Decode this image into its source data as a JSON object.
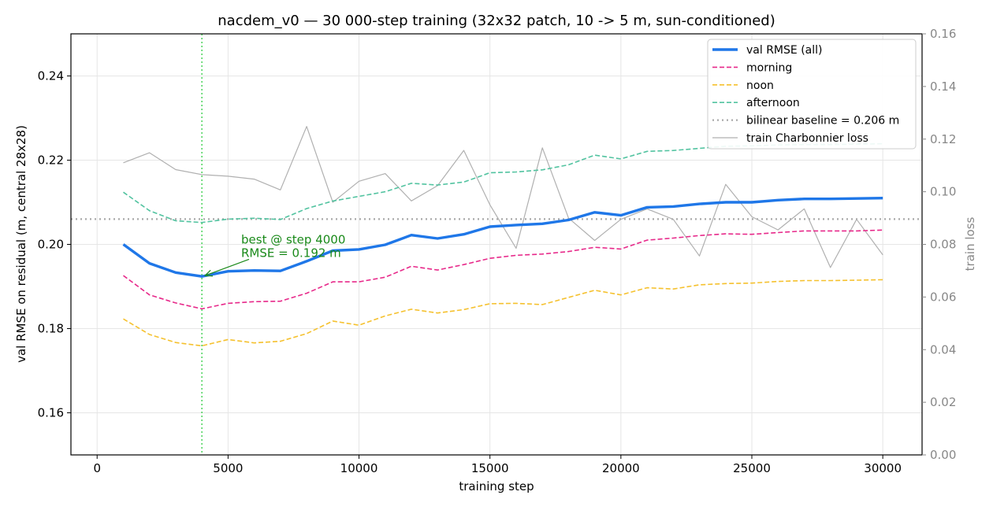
{
  "chart_data": {
    "type": "line",
    "title": "nacdem_v0 — 30 000-step training (32x32 patch, 10 -> 5 m, sun-conditioned)",
    "xlabel": "training step",
    "ylabel": "val RMSE on residual (m, central 28x28)",
    "ylabel_right": "train loss",
    "xlim": [
      -1000,
      31500
    ],
    "ylim": [
      0.15,
      0.25
    ],
    "ylim_right": [
      0.0,
      0.16
    ],
    "xticks": [
      0,
      5000,
      10000,
      15000,
      20000,
      25000,
      30000
    ],
    "yticks": [
      0.16,
      0.18,
      0.2,
      0.22,
      0.24
    ],
    "yticks_right": [
      0.0,
      0.02,
      0.04,
      0.06,
      0.08,
      0.1,
      0.12,
      0.14,
      0.16
    ],
    "grid": true,
    "legend_position": "top-right",
    "x": [
      1000,
      2000,
      3000,
      4000,
      5000,
      6000,
      7000,
      8000,
      9000,
      10000,
      11000,
      12000,
      13000,
      14000,
      15000,
      16000,
      17000,
      18000,
      19000,
      20000,
      21000,
      22000,
      23000,
      24000,
      25000,
      26000,
      27000,
      28000,
      29000,
      30000
    ],
    "series": [
      {
        "name": "val RMSE (all)",
        "axis": "left",
        "style": "solid-thick",
        "color": "#1f77e8",
        "values": [
          0.2,
          0.1955,
          0.1933,
          0.1924,
          0.1936,
          0.1938,
          0.1937,
          0.196,
          0.1985,
          0.1988,
          0.1999,
          0.2022,
          0.2014,
          0.2024,
          0.2042,
          0.2046,
          0.2049,
          0.2058,
          0.2076,
          0.2069,
          0.2088,
          0.209,
          0.2096,
          0.21,
          0.21,
          0.2105,
          0.2108,
          0.2108,
          0.2109,
          0.211
        ]
      },
      {
        "name": "morning",
        "axis": "left",
        "style": "dashed",
        "color": "#e7298a",
        "values": [
          0.1926,
          0.188,
          0.1861,
          0.1847,
          0.186,
          0.1864,
          0.1865,
          0.1884,
          0.1911,
          0.1911,
          0.1922,
          0.1948,
          0.1939,
          0.1952,
          0.1967,
          0.1974,
          0.1977,
          0.1983,
          0.1993,
          0.1989,
          0.201,
          0.2015,
          0.2021,
          0.2025,
          0.2024,
          0.2028,
          0.2032,
          0.2032,
          0.2032,
          0.2034
        ]
      },
      {
        "name": "noon",
        "axis": "left",
        "style": "dashed",
        "color": "#f5c12e",
        "values": [
          0.1823,
          0.1786,
          0.1767,
          0.1759,
          0.1774,
          0.1766,
          0.177,
          0.1788,
          0.1818,
          0.1808,
          0.183,
          0.1846,
          0.1837,
          0.1845,
          0.1859,
          0.186,
          0.1857,
          0.1874,
          0.1891,
          0.188,
          0.1897,
          0.1894,
          0.1904,
          0.1907,
          0.1908,
          0.1912,
          0.1914,
          0.1914,
          0.1915,
          0.1916
        ]
      },
      {
        "name": "afternoon",
        "axis": "left",
        "style": "dashed",
        "color": "#52c3a0",
        "values": [
          0.2124,
          0.208,
          0.2056,
          0.2052,
          0.206,
          0.2062,
          0.2059,
          0.2085,
          0.2103,
          0.2114,
          0.2125,
          0.2145,
          0.2141,
          0.2148,
          0.217,
          0.2172,
          0.2177,
          0.2189,
          0.2212,
          0.2203,
          0.2221,
          0.2223,
          0.2228,
          0.2233,
          0.2234,
          0.2236,
          0.2237,
          0.2237,
          0.2238,
          0.2239
        ]
      },
      {
        "name": "train Charbonnier loss",
        "axis": "right",
        "style": "solid-thin",
        "color": "#b0b0b0",
        "values": [
          0.111,
          0.1148,
          0.1084,
          0.1065,
          0.1059,
          0.1048,
          0.1007,
          0.1248,
          0.096,
          0.104,
          0.1069,
          0.0965,
          0.1023,
          0.1157,
          0.095,
          0.0785,
          0.1167,
          0.09,
          0.0815,
          0.0895,
          0.0935,
          0.0895,
          0.0756,
          0.1028,
          0.0905,
          0.0855,
          0.0935,
          0.0712,
          0.0895,
          0.076
        ]
      }
    ],
    "baseline": {
      "name": "bilinear baseline = 0.206 m",
      "value": 0.206,
      "style": "dotted",
      "color": "#a8a8a8"
    },
    "best_marker": {
      "x": 4000,
      "color": "#2ecc40"
    },
    "annotation": {
      "lines": [
        "best @ step 4000",
        "RMSE = 0.192 m"
      ],
      "point": {
        "x": 4000,
        "y": 0.1924
      },
      "text_at": {
        "x": 5500,
        "y": 0.2002
      },
      "color": "#1a8a1a"
    }
  }
}
